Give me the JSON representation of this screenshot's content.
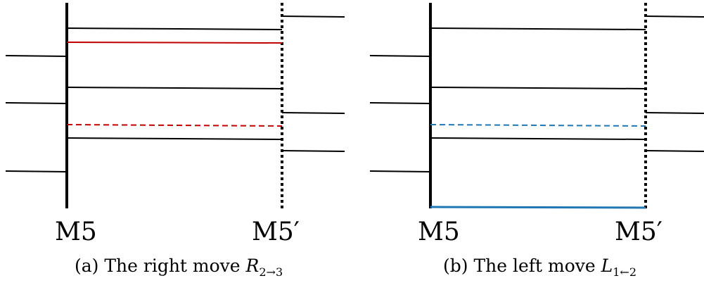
{
  "colors": {
    "ink": "#000000",
    "red": "#c00000",
    "blue": "#1f77b4"
  },
  "panels": [
    {
      "left_label": "M5",
      "right_label": "M5′",
      "caption": {
        "prefix": "(a) The right move ",
        "symbol": "R",
        "subscript": "2→3"
      }
    },
    {
      "left_label": "M5",
      "right_label": "M5′",
      "caption": {
        "prefix": "(b) The left move ",
        "symbol": "L",
        "subscript": "1←2"
      }
    }
  ]
}
